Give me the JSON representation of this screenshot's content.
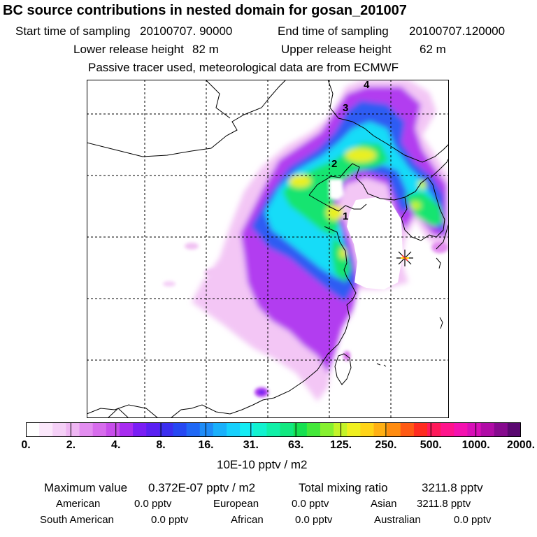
{
  "header": {
    "title": "BC  source contributions in nested domain for gosan_201007",
    "start_label": "Start time of sampling",
    "start_value": "20100707. 90000",
    "end_label": "End time of sampling",
    "end_value": "20100707.120000",
    "lower_label": "Lower release height",
    "lower_value": "82 m",
    "upper_label": "Upper release height",
    "upper_value": "62 m",
    "note": "Passive tracer used, meteorological data are from ECMWF"
  },
  "map": {
    "markers": [
      {
        "label": "1"
      },
      {
        "label": "2"
      },
      {
        "label": "3"
      },
      {
        "label": "4"
      }
    ],
    "receptor_symbol": "asterisk-star"
  },
  "colorbar": {
    "tick_labels": [
      "0.",
      "2.",
      "4.",
      "8.",
      "16.",
      "31.",
      "63.",
      "125.",
      "250.",
      "500.",
      "1000.",
      "2000."
    ],
    "unit": "10E-10 pptv / m2",
    "colors": [
      "#ffffff",
      "#fbe8fb",
      "#f5d0f7",
      "#efb6f3",
      "#e38ef0",
      "#d76cec",
      "#c84deb",
      "#a82cf0",
      "#7a1ef5",
      "#5a20f2",
      "#3b2ef0",
      "#2648f2",
      "#2068f5",
      "#1e8cf8",
      "#1ab0fb",
      "#17d0fd",
      "#14ecf4",
      "#12f2cf",
      "#10f0a8",
      "#12e880",
      "#16e050",
      "#44e83a",
      "#86f030",
      "#c4f428",
      "#f0f020",
      "#ffd418",
      "#ffb014",
      "#ff8c10",
      "#ff5a14",
      "#ff2c20",
      "#ff1a5a",
      "#ff148c",
      "#f412b0",
      "#d80fb8",
      "#b00ca6",
      "#860a8e",
      "#5a0870"
    ]
  },
  "footer": {
    "max_label": "Maximum value",
    "max_value": "0.372E-07 pptv / m2",
    "total_label": "Total mixing ratio",
    "total_value": "3211.8 pptv",
    "regions": [
      {
        "name": "American",
        "value": "0.0 pptv"
      },
      {
        "name": "European",
        "value": "0.0 pptv"
      },
      {
        "name": "Asian",
        "value": "3211.8 pptv"
      },
      {
        "name": "South American",
        "value": "0.0 pptv"
      },
      {
        "name": "African",
        "value": "0.0 pptv"
      },
      {
        "name": "Australian",
        "value": "0.0 pptv"
      }
    ]
  }
}
